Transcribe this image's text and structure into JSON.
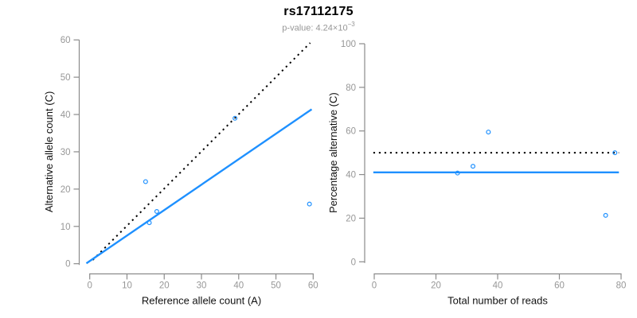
{
  "header": {
    "title": "rs17112175",
    "pvalue_prefix": "p-value: 4.24×10",
    "pvalue_exponent": "−3"
  },
  "colors": {
    "accent_blue": "#1E90FF",
    "axis_gray": "#8b8b8b",
    "tick_text_gray": "#979797",
    "line_black": "#000000"
  },
  "chart_data": [
    {
      "type": "scatter",
      "panel": "left",
      "xlabel": "Reference allele count (A)",
      "ylabel": "Alternative allele count (C)",
      "xlim": [
        0,
        60
      ],
      "ylim": [
        0,
        60
      ],
      "xticks": [
        0,
        10,
        20,
        30,
        40,
        50,
        60
      ],
      "yticks": [
        0,
        10,
        20,
        30,
        40,
        50,
        60
      ],
      "grid": false,
      "legend": "none",
      "points": [
        {
          "x": 15,
          "y": 22
        },
        {
          "x": 16,
          "y": 11
        },
        {
          "x": 18,
          "y": 14
        },
        {
          "x": 39,
          "y": 39
        },
        {
          "x": 59,
          "y": 16
        }
      ],
      "lines": [
        {
          "name": "identity-line",
          "style": "dotted",
          "color": "#000000",
          "x1": 0.8,
          "y1": 1.0,
          "x2": 59.2,
          "y2": 59.2
        },
        {
          "name": "fit-line",
          "style": "solid",
          "color": "#1E90FF",
          "x1": -0.9,
          "y1": 0.1,
          "x2": 59.6,
          "y2": 41.4
        }
      ]
    },
    {
      "type": "scatter",
      "panel": "right",
      "xlabel": "Total number of reads",
      "ylabel": "Percentage alternative (C)",
      "xlim": [
        0,
        80
      ],
      "ylim": [
        0,
        100
      ],
      "xticks": [
        0,
        20,
        40,
        60,
        80
      ],
      "yticks": [
        0,
        20,
        40,
        60,
        80,
        100
      ],
      "grid": false,
      "legend": "none",
      "points": [
        {
          "x": 37,
          "y": 59.5
        },
        {
          "x": 27,
          "y": 40.7
        },
        {
          "x": 32,
          "y": 43.8
        },
        {
          "x": 78,
          "y": 50.0
        },
        {
          "x": 75,
          "y": 21.3
        }
      ],
      "lines": [
        {
          "name": "null-50pct-line",
          "style": "dotted",
          "color": "#000000",
          "y": 50,
          "x1": -0.3,
          "x2": 79.3
        },
        {
          "name": "mean-pct-line",
          "style": "solid",
          "color": "#1E90FF",
          "y": 41,
          "x1": -0.3,
          "x2": 79.3
        }
      ]
    }
  ]
}
